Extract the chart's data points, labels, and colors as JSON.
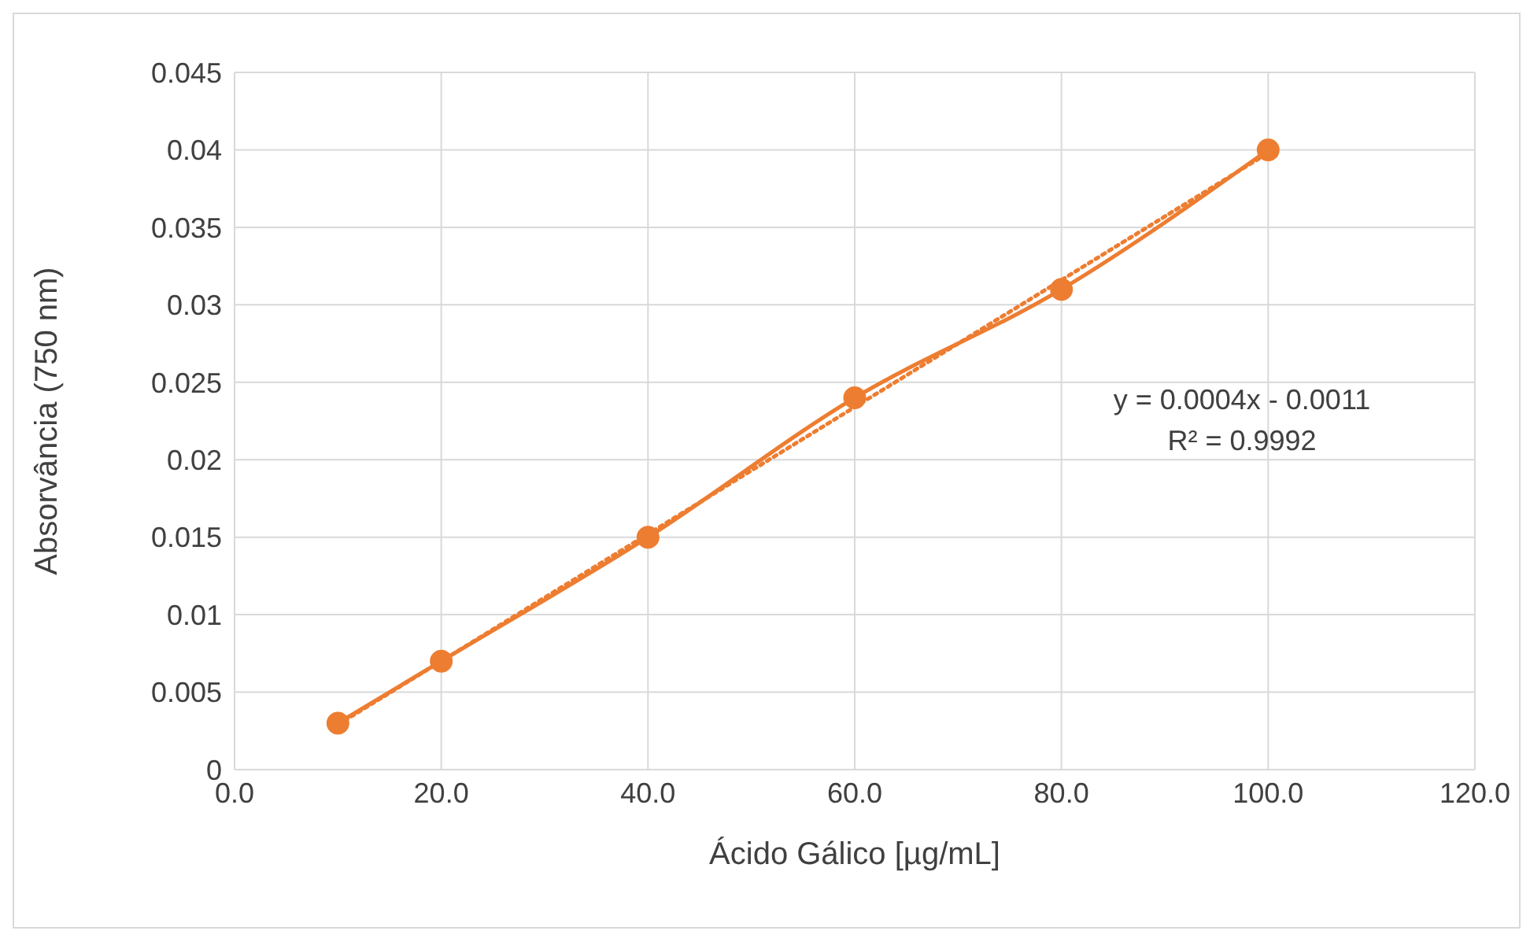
{
  "chart_data": {
    "type": "line",
    "xlabel": "Ácido Gálico [µg/mL]",
    "ylabel": "Absorvância (750 nm)",
    "xlim": [
      0,
      120
    ],
    "xticks": [
      {
        "value": 0,
        "label": "0.0"
      },
      {
        "value": 20,
        "label": "20.0"
      },
      {
        "value": 40,
        "label": "40.0"
      },
      {
        "value": 60,
        "label": "60.0"
      },
      {
        "value": 80,
        "label": "80.0"
      },
      {
        "value": 100,
        "label": "100.0"
      },
      {
        "value": 120,
        "label": "120.0"
      }
    ],
    "ylim": [
      0,
      0.045
    ],
    "yticks": [
      0,
      0.005,
      0.01,
      0.015,
      0.02,
      0.025,
      0.03,
      0.035,
      0.04,
      0.045
    ],
    "grid": true,
    "series": [
      {
        "color": "#ed7d31",
        "x": [
          10,
          20,
          40,
          60,
          80,
          100
        ],
        "values": [
          0.003,
          0.007,
          0.015,
          0.024,
          0.031,
          0.04
        ],
        "marker": "circle",
        "line_style": "solid"
      },
      {
        "color": "#ed7d31",
        "x": [
          10,
          100
        ],
        "values": [
          0.0029,
          0.0398
        ],
        "marker": "none",
        "line_style": "dotted"
      }
    ],
    "annotations": [
      "y = 0.0004x - 0.0011",
      "R² = 0.9992"
    ]
  }
}
